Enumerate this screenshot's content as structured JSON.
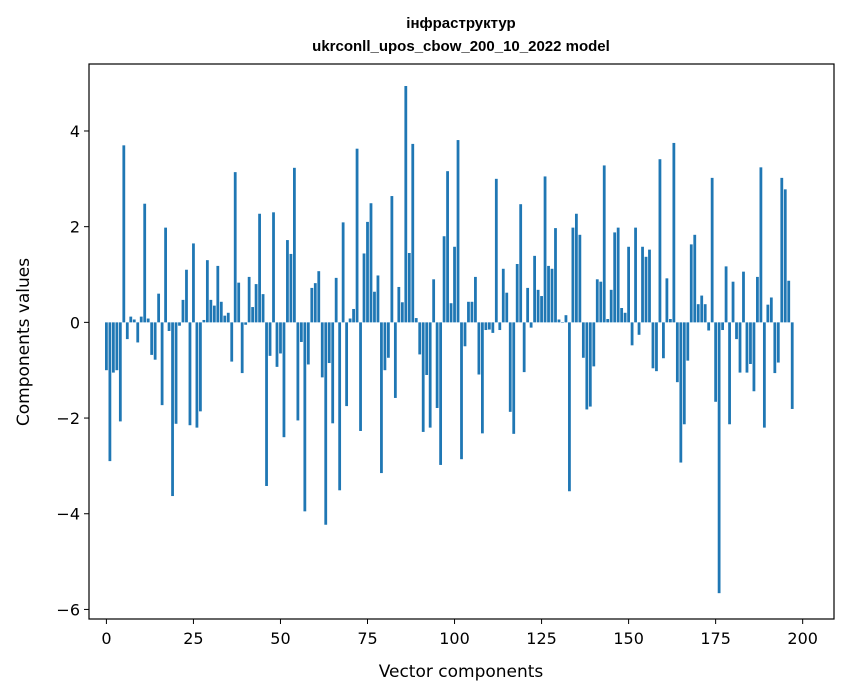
{
  "chart_data": {
    "type": "bar",
    "title_line1": "інфраструктур",
    "title_line2": "ukrconll_upos_cbow_200_10_2022 model",
    "xlabel": "Vector components",
    "ylabel": "Components values",
    "xlim": [
      -5,
      209
    ],
    "ylim": [
      -6.2,
      5.4
    ],
    "xticks": [
      0,
      25,
      50,
      75,
      100,
      125,
      150,
      175,
      200
    ],
    "yticks": [
      -6,
      -4,
      -2,
      0,
      2,
      4
    ],
    "ytick_labels": [
      "−6",
      "−4",
      "−2",
      "0",
      "2",
      "4"
    ],
    "bar_color": "#1f77b4",
    "grid": false,
    "values": [
      -1.0,
      -2.9,
      -1.05,
      -1.0,
      -2.07,
      3.7,
      -0.35,
      0.12,
      0.06,
      -0.42,
      0.12,
      2.48,
      0.08,
      -0.68,
      -0.78,
      0.6,
      -1.73,
      1.98,
      -0.18,
      -3.63,
      -2.12,
      -0.07,
      0.47,
      1.1,
      -2.15,
      1.65,
      -2.2,
      -1.86,
      0.05,
      1.3,
      0.47,
      0.35,
      1.18,
      0.43,
      0.14,
      0.2,
      -0.82,
      3.14,
      0.83,
      -1.06,
      -0.05,
      0.95,
      0.32,
      0.8,
      2.27,
      0.59,
      -3.42,
      -0.7,
      2.3,
      -0.93,
      -0.65,
      -2.4,
      1.72,
      1.43,
      3.23,
      -2.05,
      -0.41,
      -3.95,
      -0.88,
      0.72,
      0.82,
      1.07,
      -1.15,
      -4.23,
      -0.85,
      -2.11,
      0.93,
      -3.51,
      2.09,
      -1.75,
      0.08,
      0.28,
      3.63,
      -2.27,
      1.44,
      2.1,
      2.49,
      0.64,
      0.98,
      -3.15,
      -1.0,
      -0.74,
      2.64,
      -1.58,
      0.74,
      0.42,
      4.94,
      1.45,
      3.73,
      0.09,
      -0.67,
      -2.29,
      -1.1,
      -2.2,
      0.9,
      -1.79,
      -2.98,
      1.8,
      3.16,
      0.4,
      1.58,
      3.81,
      -2.86,
      -0.5,
      0.43,
      0.43,
      0.95,
      -1.09,
      -2.32,
      -0.16,
      -0.15,
      -0.22,
      3.0,
      -0.16,
      1.12,
      0.62,
      -1.87,
      -2.33,
      1.22,
      2.47,
      -1.04,
      0.72,
      -0.11,
      1.39,
      0.68,
      0.55,
      3.05,
      1.18,
      1.12,
      1.97,
      0.06,
      0.0,
      0.15,
      -3.53,
      1.98,
      2.27,
      1.83,
      -0.74,
      -1.82,
      -1.76,
      -0.92,
      0.9,
      0.85,
      3.28,
      0.07,
      0.68,
      1.88,
      1.98,
      0.3,
      0.2,
      1.58,
      -0.48,
      1.98,
      -0.26,
      1.58,
      1.37,
      1.52,
      -0.96,
      -1.02,
      3.41,
      -0.75,
      0.92,
      0.07,
      3.75,
      -1.25,
      -2.93,
      -2.13,
      -0.8,
      1.63,
      1.83,
      0.38,
      0.56,
      0.38,
      -0.17,
      3.02,
      -1.66,
      -5.66,
      -0.16,
      1.17,
      -2.13,
      0.85,
      -0.35,
      -1.05,
      1.06,
      -1.05,
      -0.87,
      -1.44,
      0.95,
      3.24,
      -2.2,
      0.37,
      0.52,
      -1.06,
      -0.84,
      3.02,
      2.78,
      0.87,
      -1.81
    ]
  }
}
